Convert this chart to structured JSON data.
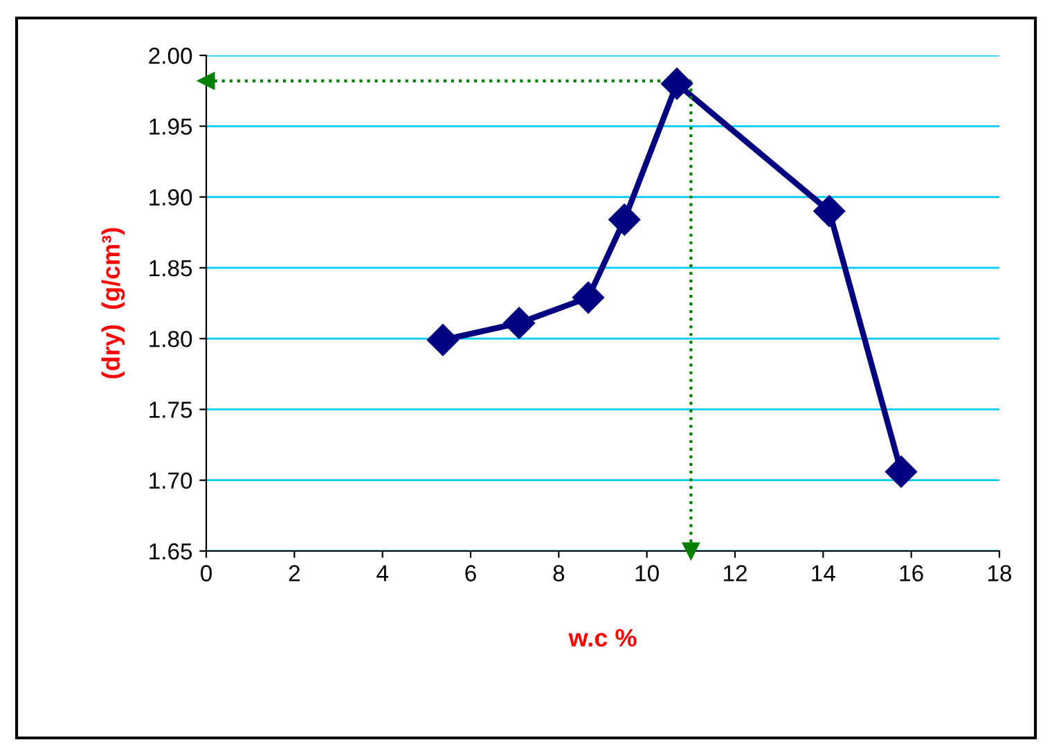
{
  "chart_data": {
    "type": "line",
    "xlabel": "w.c %",
    "ylabel": "(dry)  (g/cm³)",
    "xlim": [
      0,
      18
    ],
    "xticks": [
      0,
      2,
      4,
      6,
      8,
      10,
      12,
      14,
      16,
      18
    ],
    "ylim": [
      1.65,
      2.0
    ],
    "yticks": [
      {
        "value": 1.65,
        "label": "1.65"
      },
      {
        "value": 1.7,
        "label": "1.70"
      },
      {
        "value": 1.75,
        "label": "1.75"
      },
      {
        "value": 1.8,
        "label": "1.80"
      },
      {
        "value": 1.85,
        "label": "1.85"
      },
      {
        "value": 1.9,
        "label": "1.90"
      },
      {
        "value": 1.95,
        "label": "1.95"
      },
      {
        "value": 2.0,
        "label": "2.00"
      }
    ],
    "grid": "y",
    "legend": false,
    "series": [
      {
        "color": "#000080",
        "marker": "diamond",
        "line_style": "solid",
        "x": [
          5.37,
          7.1,
          8.67,
          9.49,
          10.68,
          14.14,
          15.77
        ],
        "values": [
          1.799,
          1.811,
          1.829,
          1.884,
          1.98,
          1.89,
          1.706
        ]
      },
      {
        "color": "#008000",
        "marker": "triangle",
        "line_style": "dotted",
        "x": [
          11,
          0
        ],
        "values": [
          1.982,
          1.982
        ]
      },
      {
        "color": "#008000",
        "marker": "triangle",
        "line_style": "dotted",
        "x": [
          11,
          11
        ],
        "values": [
          1.982,
          1.65
        ]
      }
    ]
  }
}
